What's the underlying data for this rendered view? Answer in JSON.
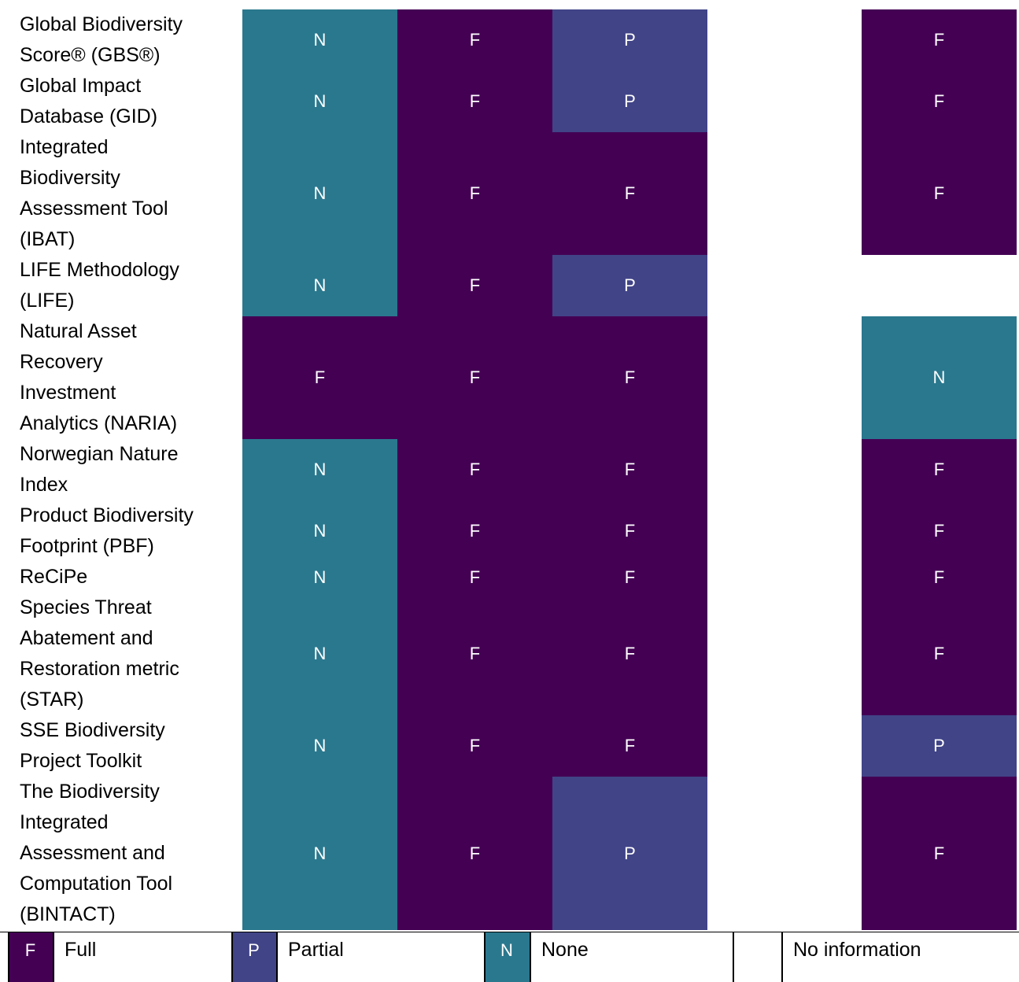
{
  "colors": {
    "F": "#440154",
    "P": "#414487",
    "N": "#2a788e",
    "blank": "#ffffff"
  },
  "rows": [
    {
      "label_lines": [
        "Global Biodiversity",
        "Score® (GBS®)"
      ],
      "cells": [
        "N",
        "F",
        "P",
        "",
        "F"
      ]
    },
    {
      "label_lines": [
        "Global Impact",
        "Database (GID)"
      ],
      "cells": [
        "N",
        "F",
        "P",
        "",
        "F"
      ]
    },
    {
      "label_lines": [
        "Integrated",
        "Biodiversity",
        "Assessment Tool",
        "(IBAT)"
      ],
      "cells": [
        "N",
        "F",
        "F",
        "",
        "F"
      ]
    },
    {
      "label_lines": [
        "LIFE Methodology",
        "(LIFE)"
      ],
      "cells": [
        "N",
        "F",
        "P",
        "",
        ""
      ]
    },
    {
      "label_lines": [
        "Natural Asset",
        "Recovery",
        "Investment",
        "Analytics (NARIA)"
      ],
      "cells": [
        "F",
        "F",
        "F",
        "",
        "N"
      ]
    },
    {
      "label_lines": [
        "Norwegian Nature",
        "Index"
      ],
      "cells": [
        "N",
        "F",
        "F",
        "",
        "F"
      ]
    },
    {
      "label_lines": [
        "Product Biodiversity",
        "Footprint (PBF)"
      ],
      "cells": [
        "N",
        "F",
        "F",
        "",
        "F"
      ]
    },
    {
      "label_lines": [
        "ReCiPe"
      ],
      "cells": [
        "N",
        "F",
        "F",
        "",
        "F"
      ]
    },
    {
      "label_lines": [
        "Species Threat",
        "Abatement and",
        "Restoration metric",
        "(STAR)"
      ],
      "cells": [
        "N",
        "F",
        "F",
        "",
        "F"
      ]
    },
    {
      "label_lines": [
        "SSE Biodiversity",
        "Project Toolkit"
      ],
      "cells": [
        "N",
        "F",
        "F",
        "",
        "P"
      ]
    },
    {
      "label_lines": [
        "The Biodiversity",
        "Integrated",
        "Assessment and",
        "Computation Tool",
        "(BINTACT)"
      ],
      "cells": [
        "N",
        "F",
        "P",
        "",
        "F"
      ]
    }
  ],
  "legend": [
    {
      "code": "F",
      "label": "Full"
    },
    {
      "code": "P",
      "label": "Partial"
    },
    {
      "code": "N",
      "label": "None"
    },
    {
      "code": "",
      "label": "No information"
    }
  ]
}
